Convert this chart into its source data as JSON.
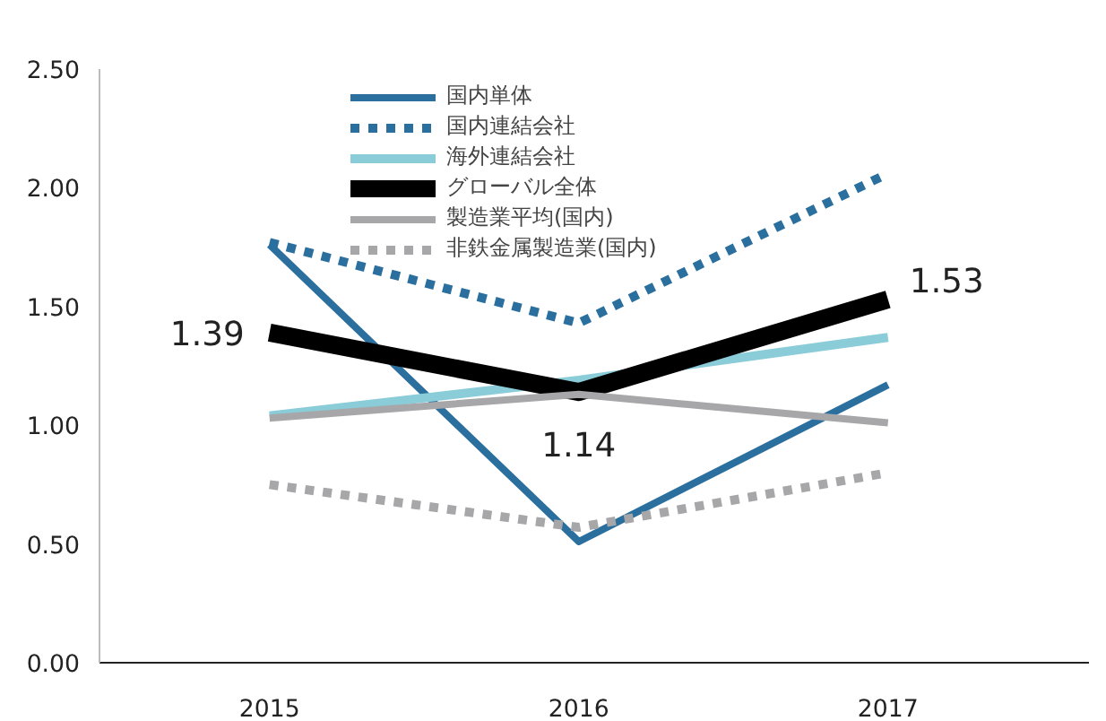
{
  "chart_data": {
    "type": "line",
    "categories": [
      "2015",
      "2016",
      "2017"
    ],
    "ylim": [
      0,
      2.5
    ],
    "yticks": [
      "0.00",
      "0.50",
      "1.00",
      "1.50",
      "2.00",
      "2.50"
    ],
    "legend": "top",
    "grid": false,
    "marker": "none",
    "series": [
      {
        "name": "国内単体",
        "color": "#2a6f9e",
        "values": [
          1.76,
          0.51,
          1.17
        ],
        "line_style": "solid"
      },
      {
        "name": "国内連結会社",
        "color": "#2a6f9e",
        "values": [
          1.77,
          1.43,
          2.06
        ],
        "line_style": "dotted"
      },
      {
        "name": "海外連結会社",
        "color": "#8accd8",
        "values": [
          1.04,
          1.19,
          1.37
        ],
        "line_style": "solid"
      },
      {
        "name": "グローバル全体",
        "color": "#000000",
        "values": [
          1.39,
          1.14,
          1.53
        ],
        "line_style": "solid",
        "value_labels": [
          "1.39",
          "1.14",
          "1.53"
        ]
      },
      {
        "name": "製造業平均(国内)",
        "color": "#a7a7a9",
        "values": [
          1.03,
          1.13,
          1.01
        ],
        "line_style": "solid"
      },
      {
        "name": "非鉄金属製造業(国内)",
        "color": "#a7a7a9",
        "values": [
          0.75,
          0.57,
          0.8
        ],
        "line_style": "dotted"
      }
    ]
  }
}
